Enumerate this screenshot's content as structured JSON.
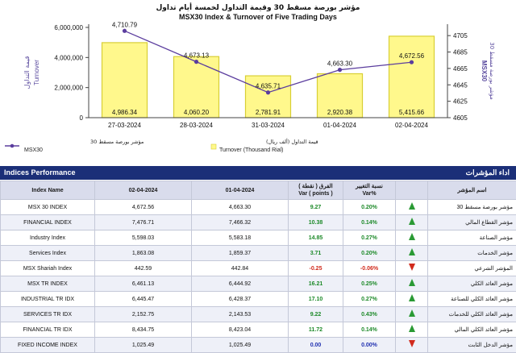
{
  "chart_data": {
    "type": "bar+line",
    "title_ar": "مؤشر بورصة مسقط 30 وقيمة التداول لخمسة أيام تداول",
    "title": "MSX30 Index & Turnover of Five Trading Days",
    "categories": [
      "27-03-2024",
      "28-03-2024",
      "31-03-2024",
      "01-04-2024",
      "02-04-2024"
    ],
    "series": [
      {
        "name": "Turnover (Thousand Rial)",
        "name_ar": "قيمة التداول (ألف ريال)",
        "type": "bar",
        "axis": "left",
        "values": [
          4986.34,
          4060.2,
          2781.91,
          2920.38,
          5415.66
        ],
        "labels": [
          "4,986.34",
          "4,060.20",
          "2,781.91",
          "2,920.38",
          "5,415.66"
        ]
      },
      {
        "name": "MSX30",
        "name_ar": "مؤشر بورصة مسقط 30",
        "type": "line",
        "axis": "right",
        "values": [
          4710.79,
          4673.13,
          4635.71,
          4663.3,
          4672.56
        ],
        "labels": [
          "4,710.79",
          "4,673.13",
          "4,635.71",
          "4,663.30",
          "4,672.56"
        ]
      }
    ],
    "yleft": {
      "ylim": [
        0,
        6000000
      ],
      "ticks": [
        0,
        2000000,
        4000000,
        6000000
      ],
      "tick_labels": [
        "0",
        "2,000,000",
        "4,000,000",
        "6,000,000"
      ],
      "label_ar": "قيمة التداول",
      "label": "Turnover"
    },
    "yright": {
      "ylim": [
        4605,
        4715
      ],
      "ticks": [
        4605,
        4625,
        4645,
        4665,
        4685,
        4705
      ],
      "tick_labels": [
        "4605",
        "4625",
        "4645",
        "4665",
        "4685",
        "4705"
      ],
      "label_ar": "مؤشر بورصة مسقط 30",
      "label": "MSX30"
    },
    "grid": false,
    "legend": "bottom-left",
    "colors": {
      "bar": "#fff88c",
      "bar_edge": "#d8cf35",
      "line": "#5b3d9e",
      "marker": "#5b3d9e"
    }
  },
  "perf": {
    "title": "Indices Performance",
    "title_ar": "اداء المؤشرات",
    "columns": {
      "name": "Index Name",
      "d1": "02-04-2024",
      "d2": "01-04-2024",
      "chg_ar": "الفرق ( نقطة )",
      "chg": "Var ( points )",
      "pct_ar": "نسبة التغيير",
      "pct": "Var%",
      "ar": "اسم المؤشر"
    },
    "rows": [
      {
        "name": "MSX 30 INDEX",
        "d1": "4,672.56",
        "d2": "4,663.30",
        "chg": "9.27",
        "pct": "0.20%",
        "dir": "up",
        "ar": "مؤشر بورصة مسقط 30"
      },
      {
        "name": "FINANCIAL INDEX",
        "d1": "7,476.71",
        "d2": "7,466.32",
        "chg": "10.38",
        "pct": "0.14%",
        "dir": "up",
        "ar": "مؤشر القطاع المالي"
      },
      {
        "name": "Industry Index",
        "d1": "5,598.03",
        "d2": "5,583.18",
        "chg": "14.85",
        "pct": "0.27%",
        "dir": "up",
        "ar": "مؤشر الصناعة"
      },
      {
        "name": "Services Index",
        "d1": "1,863.08",
        "d2": "1,859.37",
        "chg": "3.71",
        "pct": "0.20%",
        "dir": "up",
        "ar": "مؤشر الخدمات"
      },
      {
        "name": "MSX Shariah Index",
        "d1": "442.59",
        "d2": "442.84",
        "chg": "-0.25",
        "pct": "-0.06%",
        "dir": "down",
        "ar": "المؤشر الشرعي"
      },
      {
        "name": "MSX TR INDEX",
        "d1": "6,461.13",
        "d2": "6,444.92",
        "chg": "16.21",
        "pct": "0.25%",
        "dir": "up",
        "ar": "مؤشر العائد الكلي"
      },
      {
        "name": "INDUSTRIAL TR IDX",
        "d1": "6,445.47",
        "d2": "6,428.37",
        "chg": "17.10",
        "pct": "0.27%",
        "dir": "up",
        "ar": "مؤشر العائد الكلي للصناعة"
      },
      {
        "name": "SERVICES TR IDX",
        "d1": "2,152.75",
        "d2": "2,143.53",
        "chg": "9.22",
        "pct": "0.43%",
        "dir": "up",
        "ar": "مؤشر العائد الكلي للخدمات"
      },
      {
        "name": "FINANCIAL TR IDX",
        "d1": "8,434.75",
        "d2": "8,423.04",
        "chg": "11.72",
        "pct": "0.14%",
        "dir": "up",
        "ar": "مؤشر العائد الكلي المالي"
      },
      {
        "name": "FIXED INCOME INDEX",
        "d1": "1,025.49",
        "d2": "1,025.49",
        "chg": "0.00",
        "pct": "0.00%",
        "dir": "down",
        "ar": "مؤشر الدخل الثابت"
      }
    ]
  }
}
